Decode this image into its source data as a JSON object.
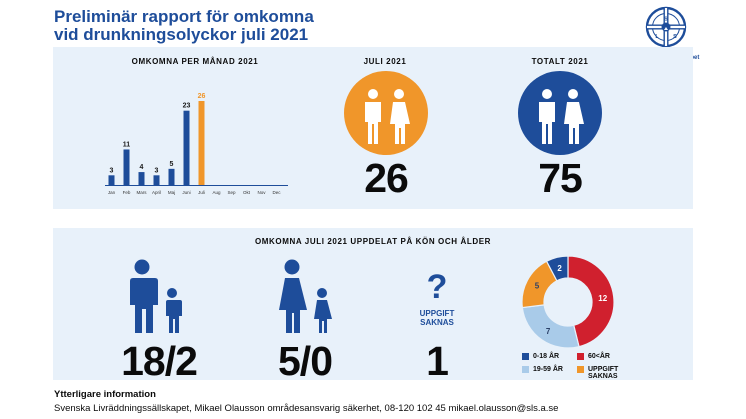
{
  "title": {
    "line1": "Preliminär rapport för omkomna",
    "line2": "vid drunkningsolyckor juli 2021"
  },
  "logo": {
    "text_line1": "Svenska",
    "text_line2": "Livräddningssällskapet",
    "letters": [
      "S",
      "L",
      "S"
    ]
  },
  "colors": {
    "navy": "#1e4d9a",
    "orange": "#f0962a",
    "red": "#d0202e",
    "lightblue": "#a9cbe9",
    "panel": "#e8f1fa"
  },
  "sections": {
    "monthly_title": "OMKOMNA PER MÅNAD 2021",
    "july_title": "JULI 2021",
    "total_title": "TOTALT 2021",
    "breakdown_title": "OMKOMNA JULI 2021 UPPDELAT PÅ KÖN OCH ÅLDER"
  },
  "july_value": "26",
  "total_value": "75",
  "men_value": "18/2",
  "women_value": "5/0",
  "unknown": {
    "symbol": "?",
    "label_line1": "UPPGIFT",
    "label_line2": "SAKNAS",
    "value": "1"
  },
  "icons": [
    "man-icon",
    "woman-icon",
    "boy-icon",
    "girl-icon",
    "question-icon"
  ],
  "legend": [
    {
      "label": "0-18 ÅR",
      "color": "#1e4d9a"
    },
    {
      "label": "60<ÅR",
      "color": "#d0202e"
    },
    {
      "label": "19-59 ÅR",
      "color": "#a9cbe9"
    },
    {
      "label": "UPPGIFT SAKNAS",
      "label_line1": "UPPGIFT",
      "label_line2": "SAKNAS",
      "color": "#f0962a"
    }
  ],
  "footer": {
    "heading": "Ytterligare information",
    "text": "Svenska Livräddningssällskapet, Mikael Olausson områdesansvarig säkerhet, 08-120 102 45 mikael.olausson@sls.a.se"
  },
  "chart_data": [
    {
      "type": "bar",
      "title": "OMKOMNA PER MÅNAD 2021",
      "categories": [
        "Jan",
        "Feb",
        "Mars",
        "April",
        "Maj",
        "Juni",
        "Juli",
        "Aug",
        "Sep",
        "Okt",
        "Nov",
        "Dec"
      ],
      "values": [
        3,
        11,
        4,
        3,
        5,
        23,
        26,
        null,
        null,
        null,
        null,
        null
      ],
      "colors": [
        "#1e4d9a",
        "#1e4d9a",
        "#1e4d9a",
        "#1e4d9a",
        "#1e4d9a",
        "#1e4d9a",
        "#f0962a"
      ],
      "ylim": [
        0,
        26
      ],
      "grid": false,
      "data_labels": true
    },
    {
      "type": "pie",
      "subtype": "donut",
      "title": "",
      "slices": [
        {
          "label": "60<ÅR",
          "value": 12,
          "color": "#d0202e"
        },
        {
          "label": "19-59 ÅR",
          "value": 7,
          "color": "#a9cbe9"
        },
        {
          "label": "UPPGIFT SAKNAS",
          "value": 5,
          "color": "#f0962a"
        },
        {
          "label": "0-18 ÅR",
          "value": 2,
          "color": "#1e4d9a"
        }
      ],
      "legend_position": "bottom"
    }
  ]
}
